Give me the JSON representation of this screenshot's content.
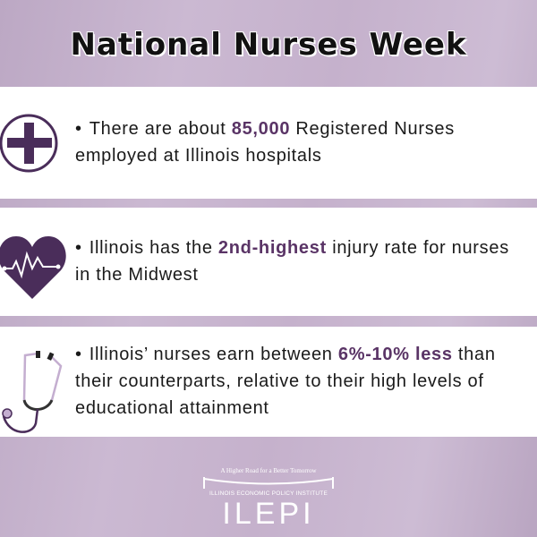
{
  "title": "National Nurses Week",
  "facts": [
    {
      "icon": "medical-cross-icon",
      "before": "There are about ",
      "highlight": "85,000",
      "after": " Registered Nurses employed at Illinois hospitals"
    },
    {
      "icon": "heartbeat-icon",
      "before": "Illinois has the ",
      "highlight": "2nd-highest",
      "after": " injury rate for nurses in the Midwest"
    },
    {
      "icon": "stethoscope-icon",
      "before": "Illinois’ nurses earn between ",
      "highlight": "6%-10% less",
      "after": " than their counterparts, relative to their high levels of educational attainment"
    }
  ],
  "logo": {
    "tagline": "A Higher Road for a Better Tomorrow",
    "institute": "ILLINOIS ECONOMIC POLICY INSTITUTE",
    "acronym": "ILEPI"
  },
  "colors": {
    "accent": "#5a3466",
    "icon": "#4a2d5a",
    "background": "#c9b6cf"
  }
}
